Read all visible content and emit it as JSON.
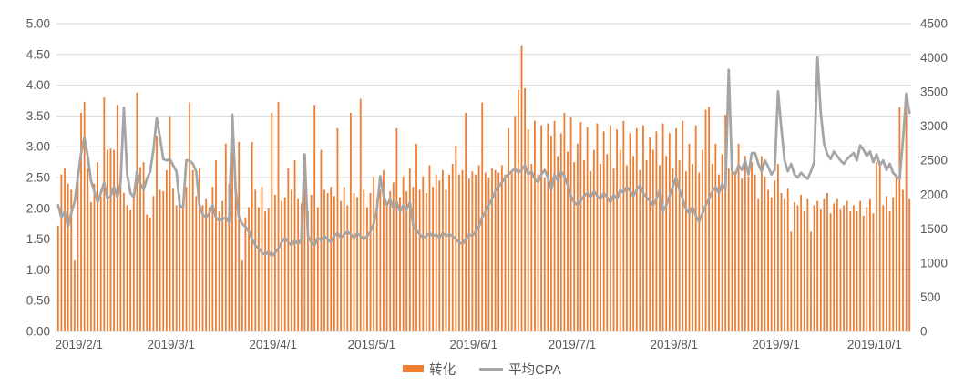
{
  "chart_data": {
    "type": "bar",
    "subtype": "combo-bar-line",
    "title": "",
    "n_points": 260,
    "grid": "horizontal",
    "grid_color": "#D9D9D9",
    "axis_text_color": "#595959",
    "background": "#FFFFFF",
    "legend_position": "bottom",
    "x_tick_labels": [
      "2019/2/1",
      "2019/3/1",
      "2019/4/1",
      "2019/5/1",
      "2019/6/1",
      "2019/7/1",
      "2019/8/1",
      "2019/9/1",
      "2019/10/1"
    ],
    "x_tick_indices": [
      0,
      28,
      59,
      89,
      120,
      150,
      181,
      212,
      242
    ],
    "left_axis": {
      "min": 0,
      "max": 5,
      "step": 0.5,
      "tick_labels": [
        "0.00",
        "0.50",
        "1.00",
        "1.50",
        "2.00",
        "2.50",
        "3.00",
        "3.50",
        "4.00",
        "4.50",
        "5.00"
      ]
    },
    "right_axis": {
      "min": 0,
      "max": 4500,
      "step": 500,
      "tick_labels": [
        "0",
        "500",
        "1000",
        "1500",
        "2000",
        "2500",
        "3000",
        "3500",
        "4000",
        "4500"
      ]
    },
    "series": [
      {
        "name": "转化",
        "type": "bar",
        "axis": "left",
        "color": "#ED7D31",
        "values": [
          1.72,
          2.55,
          2.65,
          2.4,
          2.3,
          1.15,
          2.62,
          3.55,
          3.73,
          2.65,
          2.1,
          2.4,
          2.75,
          2.2,
          3.8,
          2.95,
          2.97,
          2.95,
          3.68,
          2.55,
          2.25,
          2.05,
          1.97,
          2.2,
          3.88,
          2.67,
          2.75,
          1.9,
          1.85,
          2.2,
          3.18,
          2.3,
          2.28,
          2.62,
          3.5,
          2.32,
          2.05,
          2.22,
          2.1,
          2.35,
          3.72,
          2.62,
          2.2,
          2.65,
          2.05,
          2.15,
          2.02,
          2.35,
          2.78,
          1.95,
          2.12,
          3.05,
          2.4,
          3.52,
          2.25,
          3.08,
          1.15,
          1.85,
          2.02,
          3.08,
          2.3,
          2.02,
          2.35,
          1.95,
          2.0,
          3.55,
          2.22,
          3.73,
          2.12,
          2.18,
          2.65,
          2.3,
          2.78,
          2.15,
          2.08,
          2.32,
          1.95,
          2.22,
          3.68,
          2.02,
          2.95,
          2.3,
          2.25,
          2.35,
          2.2,
          3.3,
          2.12,
          2.35,
          2.05,
          3.55,
          2.25,
          2.18,
          3.78,
          2.3,
          2.02,
          2.25,
          2.52,
          2.15,
          2.3,
          2.62,
          2.05,
          2.28,
          2.42,
          3.3,
          2.18,
          2.52,
          2.28,
          2.65,
          2.35,
          3.05,
          2.3,
          2.52,
          2.25,
          2.7,
          2.35,
          2.55,
          2.45,
          2.62,
          2.3,
          2.55,
          2.72,
          3.02,
          2.55,
          2.62,
          3.55,
          2.48,
          2.6,
          2.55,
          2.7,
          3.72,
          2.58,
          2.5,
          2.65,
          2.62,
          2.58,
          2.7,
          2.55,
          3.3,
          2.62,
          3.5,
          3.92,
          4.65,
          3.95,
          3.28,
          2.72,
          3.42,
          2.55,
          3.35,
          2.5,
          3.38,
          3.18,
          3.42,
          2.85,
          3.22,
          3.55,
          2.92,
          3.48,
          2.75,
          3.05,
          3.4,
          2.78,
          3.32,
          2.6,
          2.95,
          3.38,
          2.72,
          3.25,
          2.88,
          3.35,
          2.65,
          3.28,
          2.95,
          3.42,
          2.7,
          3.22,
          2.85,
          3.3,
          2.62,
          3.35,
          2.78,
          3.15,
          2.95,
          3.25,
          2.7,
          3.38,
          2.85,
          3.22,
          2.65,
          3.3,
          2.78,
          3.42,
          2.6,
          3.05,
          2.72,
          3.35,
          2.58,
          2.95,
          3.6,
          3.65,
          2.72,
          3.05,
          2.55,
          2.88,
          3.52,
          2.65,
          2.95,
          2.58,
          3.05,
          2.48,
          2.85,
          2.52,
          2.75,
          2.55,
          2.15,
          2.85,
          2.52,
          2.3,
          2.18,
          2.45,
          2.72,
          2.25,
          2.15,
          2.32,
          1.62,
          2.1,
          2.05,
          2.22,
          1.95,
          2.15,
          1.62,
          2.05,
          2.12,
          1.98,
          2.15,
          2.25,
          1.92,
          2.08,
          2.15,
          1.98,
          2.05,
          2.12,
          1.95,
          2.05,
          1.95,
          2.12,
          1.88,
          2.02,
          2.15,
          1.92,
          2.75,
          2.75,
          2.05,
          2.2,
          1.95,
          2.18,
          2.52,
          3.64,
          2.3,
          3.88,
          2.15
        ]
      },
      {
        "name": "平均CPA",
        "type": "line",
        "axis": "right",
        "color": "#A5A5A5",
        "values": [
          1845,
          1665,
          1755,
          1530,
          1730,
          1890,
          2250,
          2610,
          2835,
          2565,
          2205,
          2050,
          1890,
          2025,
          2180,
          1935,
          1980,
          2115,
          1960,
          2180,
          3270,
          2295,
          2025,
          1960,
          2340,
          2160,
          2070,
          2230,
          2340,
          2655,
          3120,
          2835,
          2520,
          2500,
          2520,
          2430,
          2340,
          1845,
          1800,
          2500,
          2500,
          2450,
          2340,
          1845,
          1710,
          1665,
          1730,
          1845,
          1665,
          1620,
          1640,
          1665,
          1600,
          3170,
          2070,
          1665,
          1575,
          1530,
          1460,
          1350,
          1260,
          1215,
          1150,
          1125,
          1170,
          1100,
          1150,
          1215,
          1305,
          1370,
          1305,
          1260,
          1330,
          1280,
          1350,
          2590,
          1395,
          1305,
          1260,
          1370,
          1330,
          1395,
          1350,
          1305,
          1395,
          1440,
          1370,
          1420,
          1460,
          1420,
          1370,
          1440,
          1395,
          1350,
          1395,
          1460,
          1575,
          1800,
          2270,
          1980,
          1845,
          1935,
          1800,
          1890,
          1755,
          1845,
          1780,
          1890,
          1550,
          1485,
          1420,
          1370,
          1395,
          1440,
          1395,
          1420,
          1370,
          1440,
          1395,
          1420,
          1395,
          1350,
          1305,
          1280,
          1350,
          1420,
          1395,
          1460,
          1530,
          1665,
          1755,
          1845,
          1935,
          2050,
          2115,
          2180,
          2250,
          2295,
          2340,
          2385,
          2320,
          2360,
          2430,
          2295,
          2340,
          2230,
          2180,
          2295,
          2360,
          2250,
          2070,
          2295,
          2205,
          2340,
          2270,
          2140,
          1980,
          1890,
          1845,
          1910,
          1980,
          2025,
          1960,
          2050,
          1980,
          1935,
          2025,
          1960,
          1890,
          2000,
          1935,
          2070,
          2025,
          2115,
          2050,
          1980,
          2070,
          2140,
          2025,
          1960,
          1910,
          1845,
          1935,
          2070,
          1755,
          1845,
          1980,
          2115,
          2250,
          2070,
          1935,
          1780,
          1730,
          1820,
          1690,
          1600,
          1730,
          1845,
          1935,
          2050,
          2115,
          2025,
          2160,
          2070,
          3825,
          2340,
          2295,
          2430,
          2360,
          2500,
          2295,
          2610,
          2610,
          2450,
          2340,
          2500,
          2410,
          2295,
          2360,
          3510,
          2970,
          2500,
          2340,
          2450,
          2295,
          2250,
          2320,
          2270,
          2230,
          2340,
          2475,
          4005,
          3195,
          2745,
          2590,
          2520,
          2630,
          2565,
          2500,
          2450,
          2520,
          2565,
          2610,
          2500,
          2720,
          2655,
          2565,
          2630,
          2475,
          2590,
          2430,
          2500,
          2360,
          2450,
          2320,
          2270,
          2230,
          2790,
          3465,
          3195
        ]
      }
    ]
  },
  "legend": {
    "items": [
      {
        "label": "转化",
        "color": "#ED7D31",
        "marker": "bar"
      },
      {
        "label": "平均CPA",
        "color": "#A5A5A5",
        "marker": "line"
      }
    ]
  }
}
